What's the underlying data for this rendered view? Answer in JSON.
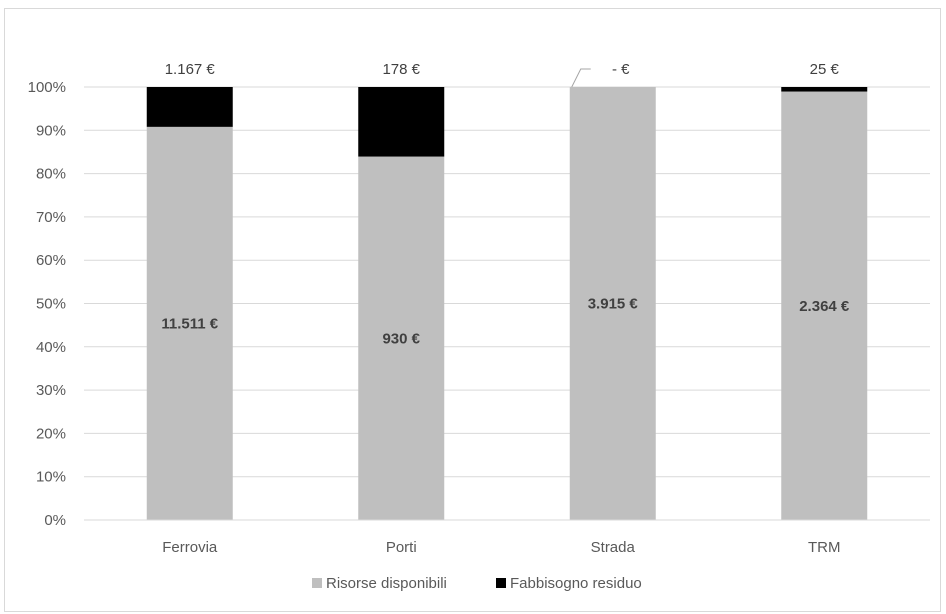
{
  "chart_data": {
    "type": "bar",
    "stacked": true,
    "normalized": true,
    "categories": [
      "Ferrovia",
      "Porti",
      "Strada",
      "TRM"
    ],
    "series": [
      {
        "name": "Risorse disponibili",
        "color": "#bfbfbf",
        "values": [
          11511,
          930,
          3915,
          2364
        ],
        "labels": [
          "11.511 €",
          "930 €",
          "3.915 €",
          "2.364 €"
        ]
      },
      {
        "name": "Fabbisogno residuo",
        "color": "#000000",
        "values": [
          1167,
          178,
          0,
          25
        ],
        "labels": [
          "1.167 €",
          "178 €",
          "-  €",
          "25 €"
        ]
      }
    ],
    "yticks": [
      "0%",
      "10%",
      "20%",
      "30%",
      "40%",
      "50%",
      "60%",
      "70%",
      "80%",
      "90%",
      "100%"
    ],
    "ylim": [
      0,
      100
    ],
    "grid": true,
    "legend": "bottom"
  }
}
